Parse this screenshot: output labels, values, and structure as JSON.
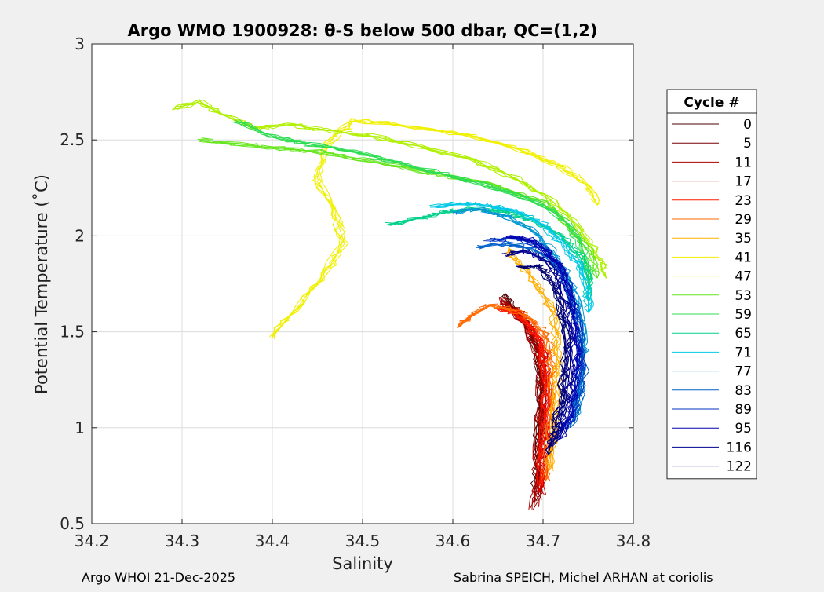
{
  "chart_data": {
    "type": "line",
    "title": "Argo WMO 1900928: θ-S below 500 dbar,  QC=(1,2)",
    "xlabel": "Salinity",
    "ylabel": "Potential Temperature (˚C)",
    "xlim": [
      34.2,
      34.8
    ],
    "ylim": [
      0.5,
      3.0
    ],
    "xticks": [
      34.2,
      34.3,
      34.4,
      34.5,
      34.6,
      34.7,
      34.8
    ],
    "xtick_labels": [
      "34.2",
      "34.3",
      "34.4",
      "34.5",
      "34.6",
      "34.7",
      "34.8"
    ],
    "yticks": [
      0.5,
      1.0,
      1.5,
      2.0,
      2.5,
      3.0
    ],
    "ytick_labels": [
      "0.5",
      "1",
      "1.5",
      "2",
      "2.5",
      "3"
    ],
    "grid": true,
    "legend_title": "Cycle #",
    "legend_position": "outside-right",
    "series": [
      {
        "name": "0",
        "color": "#4a0000",
        "points": [
          [
            34.692,
            0.68
          ],
          [
            34.694,
            0.82
          ],
          [
            34.695,
            1.0
          ],
          [
            34.697,
            1.2
          ],
          [
            34.695,
            1.38
          ],
          [
            34.683,
            1.52
          ],
          [
            34.667,
            1.62
          ],
          [
            34.658,
            1.7
          ]
        ]
      },
      {
        "name": "5",
        "color": "#7a0000",
        "points": [
          [
            34.694,
            0.62
          ],
          [
            34.697,
            0.8
          ],
          [
            34.699,
            1.0
          ],
          [
            34.7,
            1.2
          ],
          [
            34.697,
            1.36
          ],
          [
            34.686,
            1.5
          ],
          [
            34.672,
            1.6
          ],
          [
            34.66,
            1.66
          ]
        ]
      },
      {
        "name": "11",
        "color": "#a80000",
        "points": [
          [
            34.69,
            0.58
          ],
          [
            34.693,
            0.78
          ],
          [
            34.696,
            1.0
          ],
          [
            34.698,
            1.22
          ],
          [
            34.694,
            1.4
          ],
          [
            34.68,
            1.53
          ],
          [
            34.664,
            1.63
          ],
          [
            34.652,
            1.68
          ]
        ]
      },
      {
        "name": "17",
        "color": "#d40000",
        "points": [
          [
            34.698,
            0.66
          ],
          [
            34.701,
            0.86
          ],
          [
            34.703,
            1.06
          ],
          [
            34.704,
            1.26
          ],
          [
            34.7,
            1.42
          ],
          [
            34.689,
            1.52
          ],
          [
            34.674,
            1.6
          ],
          [
            34.662,
            1.62
          ]
        ]
      },
      {
        "name": "23",
        "color": "#ff1a00",
        "points": [
          [
            34.696,
            0.7
          ],
          [
            34.699,
            0.9
          ],
          [
            34.702,
            1.1
          ],
          [
            34.703,
            1.28
          ],
          [
            34.698,
            1.44
          ],
          [
            34.684,
            1.54
          ],
          [
            34.668,
            1.6
          ],
          [
            34.648,
            1.62
          ]
        ]
      },
      {
        "name": "29",
        "color": "#ff6a00",
        "points": [
          [
            34.703,
            0.72
          ],
          [
            34.706,
            0.92
          ],
          [
            34.709,
            1.12
          ],
          [
            34.711,
            1.3
          ],
          [
            34.706,
            1.46
          ],
          [
            34.69,
            1.56
          ],
          [
            34.664,
            1.62
          ],
          [
            34.64,
            1.64
          ],
          [
            34.62,
            1.58
          ],
          [
            34.605,
            1.52
          ]
        ]
      },
      {
        "name": "35",
        "color": "#ffb000",
        "points": [
          [
            34.707,
            0.78
          ],
          [
            34.711,
            0.98
          ],
          [
            34.714,
            1.2
          ],
          [
            34.716,
            1.4
          ],
          [
            34.712,
            1.58
          ],
          [
            34.7,
            1.7
          ],
          [
            34.685,
            1.8
          ],
          [
            34.666,
            1.88
          ],
          [
            34.662,
            1.94
          ]
        ]
      },
      {
        "name": "41",
        "color": "#f0f000",
        "points": [
          [
            34.4,
            1.47
          ],
          [
            34.43,
            1.64
          ],
          [
            34.46,
            1.82
          ],
          [
            34.48,
            1.96
          ],
          [
            34.47,
            2.1
          ],
          [
            34.45,
            2.3
          ],
          [
            34.46,
            2.48
          ],
          [
            34.49,
            2.6
          ],
          [
            34.54,
            2.58
          ],
          [
            34.62,
            2.52
          ],
          [
            34.68,
            2.44
          ],
          [
            34.72,
            2.36
          ],
          [
            34.75,
            2.26
          ],
          [
            34.76,
            2.16
          ]
        ]
      },
      {
        "name": "47",
        "color": "#b0f000",
        "points": [
          [
            34.29,
            2.66
          ],
          [
            34.32,
            2.7
          ],
          [
            34.35,
            2.62
          ],
          [
            34.38,
            2.56
          ],
          [
            34.42,
            2.58
          ],
          [
            34.46,
            2.55
          ],
          [
            34.51,
            2.52
          ],
          [
            34.56,
            2.47
          ],
          [
            34.62,
            2.4
          ],
          [
            34.67,
            2.3
          ],
          [
            34.71,
            2.18
          ],
          [
            34.74,
            2.04
          ],
          [
            34.76,
            1.9
          ],
          [
            34.77,
            1.78
          ]
        ]
      },
      {
        "name": "53",
        "color": "#66e61e",
        "points": [
          [
            34.32,
            2.5
          ],
          [
            34.36,
            2.48
          ],
          [
            34.4,
            2.46
          ],
          [
            34.45,
            2.44
          ],
          [
            34.5,
            2.4
          ],
          [
            34.55,
            2.35
          ],
          [
            34.6,
            2.31
          ],
          [
            34.65,
            2.26
          ],
          [
            34.7,
            2.17
          ],
          [
            34.73,
            2.05
          ],
          [
            34.75,
            1.92
          ],
          [
            34.76,
            1.78
          ]
        ]
      },
      {
        "name": "59",
        "color": "#2edc52",
        "points": [
          [
            34.36,
            2.6
          ],
          [
            34.4,
            2.52
          ],
          [
            34.44,
            2.48
          ],
          [
            34.49,
            2.44
          ],
          [
            34.54,
            2.38
          ],
          [
            34.59,
            2.32
          ],
          [
            34.64,
            2.26
          ],
          [
            34.68,
            2.2
          ],
          [
            34.72,
            2.1
          ],
          [
            34.74,
            1.98
          ],
          [
            34.75,
            1.84
          ],
          [
            34.75,
            1.72
          ]
        ]
      },
      {
        "name": "65",
        "color": "#00d08a",
        "points": [
          [
            34.53,
            2.06
          ],
          [
            34.57,
            2.1
          ],
          [
            34.6,
            2.13
          ],
          [
            34.63,
            2.14
          ],
          [
            34.66,
            2.12
          ],
          [
            34.69,
            2.08
          ],
          [
            34.72,
            2.0
          ],
          [
            34.74,
            1.9
          ],
          [
            34.75,
            1.78
          ],
          [
            34.75,
            1.66
          ]
        ]
      },
      {
        "name": "71",
        "color": "#00c8e6",
        "points": [
          [
            34.58,
            2.15
          ],
          [
            34.61,
            2.17
          ],
          [
            34.64,
            2.16
          ],
          [
            34.67,
            2.13
          ],
          [
            34.7,
            2.06
          ],
          [
            34.72,
            1.97
          ],
          [
            34.74,
            1.85
          ],
          [
            34.75,
            1.72
          ],
          [
            34.75,
            1.6
          ]
        ]
      },
      {
        "name": "77",
        "color": "#0096d2",
        "points": [
          [
            34.6,
            2.12
          ],
          [
            34.63,
            2.14
          ],
          [
            34.66,
            2.1
          ],
          [
            34.69,
            2.02
          ],
          [
            34.71,
            1.92
          ],
          [
            34.73,
            1.78
          ],
          [
            34.74,
            1.6
          ],
          [
            34.745,
            1.4
          ],
          [
            34.74,
            1.2
          ],
          [
            34.735,
            1.05
          ]
        ]
      },
      {
        "name": "83",
        "color": "#0060c8",
        "points": [
          [
            34.63,
            1.94
          ],
          [
            34.66,
            1.96
          ],
          [
            34.69,
            1.93
          ],
          [
            34.71,
            1.86
          ],
          [
            34.725,
            1.76
          ],
          [
            34.735,
            1.62
          ],
          [
            34.742,
            1.46
          ],
          [
            34.745,
            1.3
          ],
          [
            34.74,
            1.14
          ],
          [
            34.73,
            1.0
          ]
        ]
      },
      {
        "name": "89",
        "color": "#0030c0",
        "points": [
          [
            34.64,
            1.98
          ],
          [
            34.67,
            1.99
          ],
          [
            34.695,
            1.95
          ],
          [
            34.715,
            1.88
          ],
          [
            34.728,
            1.76
          ],
          [
            34.737,
            1.6
          ],
          [
            34.742,
            1.44
          ],
          [
            34.742,
            1.28
          ],
          [
            34.736,
            1.12
          ],
          [
            34.726,
            0.98
          ]
        ]
      },
      {
        "name": "95",
        "color": "#0000b0",
        "points": [
          [
            34.66,
            2.0
          ],
          [
            34.685,
            1.98
          ],
          [
            34.705,
            1.92
          ],
          [
            34.72,
            1.82
          ],
          [
            34.73,
            1.68
          ],
          [
            34.736,
            1.52
          ],
          [
            34.738,
            1.36
          ],
          [
            34.735,
            1.2
          ],
          [
            34.728,
            1.06
          ],
          [
            34.718,
            0.94
          ]
        ]
      },
      {
        "name": "116",
        "color": "#000090",
        "points": [
          [
            34.66,
            1.9
          ],
          [
            34.68,
            1.92
          ],
          [
            34.7,
            1.88
          ],
          [
            34.715,
            1.78
          ],
          [
            34.725,
            1.64
          ],
          [
            34.73,
            1.48
          ],
          [
            34.73,
            1.32
          ],
          [
            34.726,
            1.16
          ],
          [
            34.718,
            1.02
          ],
          [
            34.71,
            0.9
          ]
        ]
      },
      {
        "name": "122",
        "color": "#000070",
        "points": [
          [
            34.675,
            1.84
          ],
          [
            34.695,
            1.84
          ],
          [
            34.71,
            1.76
          ],
          [
            34.72,
            1.62
          ],
          [
            34.725,
            1.46
          ],
          [
            34.724,
            1.3
          ],
          [
            34.72,
            1.14
          ],
          [
            34.713,
            1.0
          ],
          [
            34.706,
            0.86
          ]
        ]
      }
    ]
  },
  "footer": {
    "left": "Argo WHOI 21-Dec-2025",
    "right": "Sabrina SPEICH, Michel ARHAN at coriolis"
  }
}
